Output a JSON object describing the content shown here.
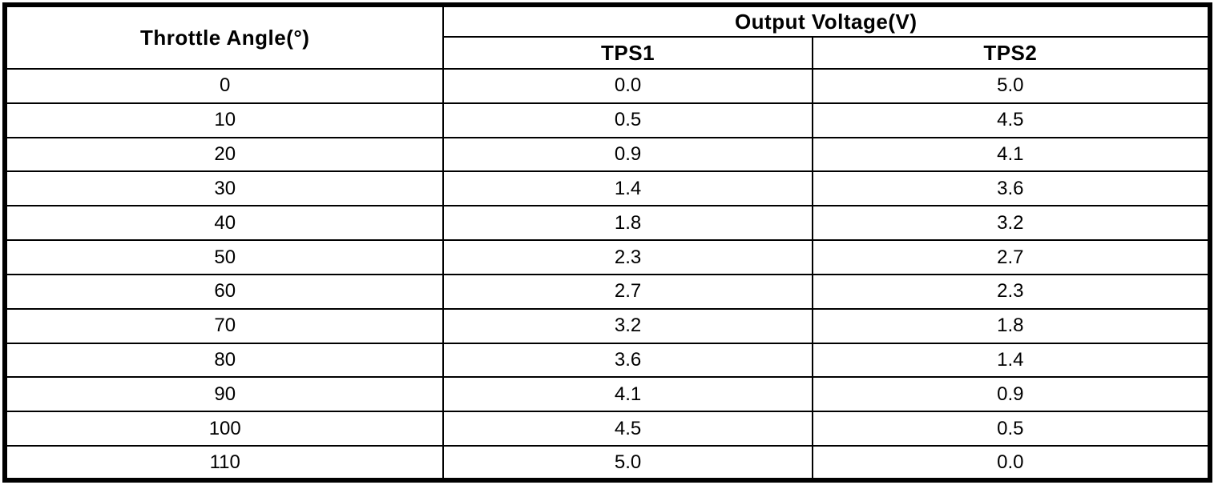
{
  "colors": {
    "border": "#000000",
    "background": "#ffffff",
    "text": "#000000"
  },
  "table": {
    "header": {
      "throttle_angle": "Throttle Angle(°)",
      "output_voltage": "Output Voltage(V)",
      "tps1": "TPS1",
      "tps2": "TPS2"
    },
    "rows": [
      {
        "angle": "0",
        "tps1": "0.0",
        "tps2": "5.0"
      },
      {
        "angle": "10",
        "tps1": "0.5",
        "tps2": "4.5"
      },
      {
        "angle": "20",
        "tps1": "0.9",
        "tps2": "4.1"
      },
      {
        "angle": "30",
        "tps1": "1.4",
        "tps2": "3.6"
      },
      {
        "angle": "40",
        "tps1": "1.8",
        "tps2": "3.2"
      },
      {
        "angle": "50",
        "tps1": "2.3",
        "tps2": "2.7"
      },
      {
        "angle": "60",
        "tps1": "2.7",
        "tps2": "2.3"
      },
      {
        "angle": "70",
        "tps1": "3.2",
        "tps2": "1.8"
      },
      {
        "angle": "80",
        "tps1": "3.6",
        "tps2": "1.4"
      },
      {
        "angle": "90",
        "tps1": "4.1",
        "tps2": "0.9"
      },
      {
        "angle": "100",
        "tps1": "4.5",
        "tps2": "0.5"
      },
      {
        "angle": "110",
        "tps1": "5.0",
        "tps2": "0.0"
      }
    ]
  },
  "chart_data": {
    "type": "table",
    "title": "Output Voltage(V)",
    "categories": [
      0,
      10,
      20,
      30,
      40,
      50,
      60,
      70,
      80,
      90,
      100,
      110
    ],
    "xlabel": "Throttle Angle(°)",
    "series": [
      {
        "name": "TPS1",
        "values": [
          0.0,
          0.5,
          0.9,
          1.4,
          1.8,
          2.3,
          2.7,
          3.2,
          3.6,
          4.1,
          4.5,
          5.0
        ]
      },
      {
        "name": "TPS2",
        "values": [
          5.0,
          4.5,
          4.1,
          3.6,
          3.2,
          2.7,
          2.3,
          1.8,
          1.4,
          0.9,
          0.5,
          0.0
        ]
      }
    ]
  }
}
